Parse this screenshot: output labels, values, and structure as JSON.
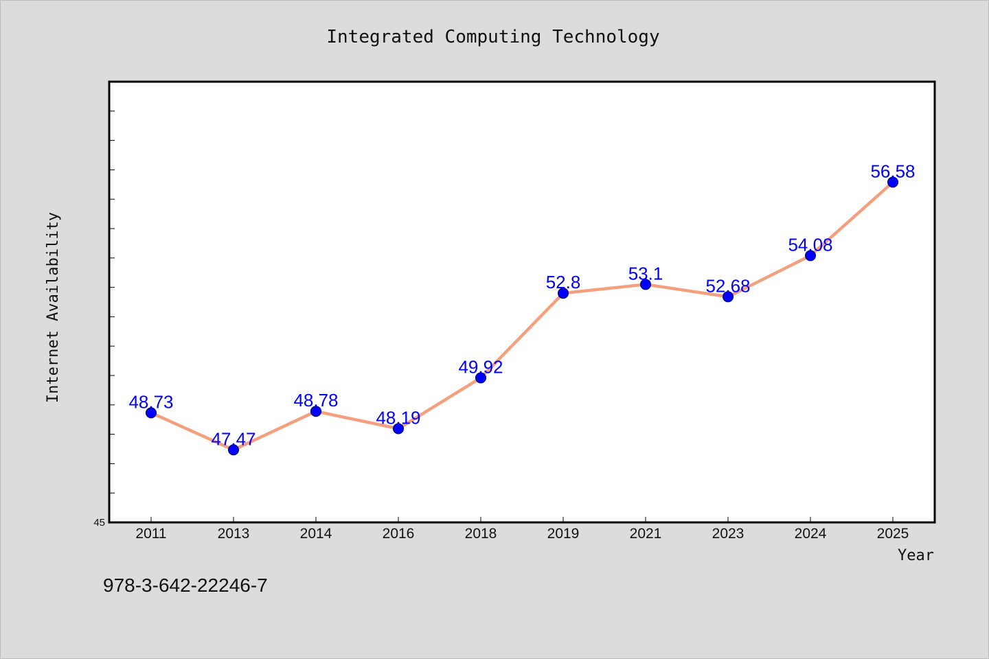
{
  "chart_data": {
    "type": "line",
    "title": "Integrated Computing Technology",
    "xlabel": "Year",
    "ylabel": "Internet Availability",
    "categories": [
      "2011",
      "2013",
      "2014",
      "2016",
      "2018",
      "2019",
      "2021",
      "2023",
      "2024",
      "2025"
    ],
    "series": [
      {
        "values": [
          48.73,
          47.47,
          48.78,
          48.19,
          49.92,
          52.8,
          53.1,
          52.68,
          54.08,
          56.58
        ],
        "line_color": "#f4a07e",
        "marker_color": "#0000ff"
      }
    ],
    "data_labels": [
      "48.73",
      "47.47",
      "48.78",
      "48.19",
      "49.92",
      "52.8",
      "53.1",
      "52.68",
      "54.08",
      "56.58"
    ],
    "ylim": [
      45,
      60
    ],
    "y_tick_step": 1,
    "y_tick_labels": [
      "45"
    ],
    "grid": false,
    "legend": "none"
  },
  "footer": {
    "isbn": "978-3-642-22246-7"
  }
}
